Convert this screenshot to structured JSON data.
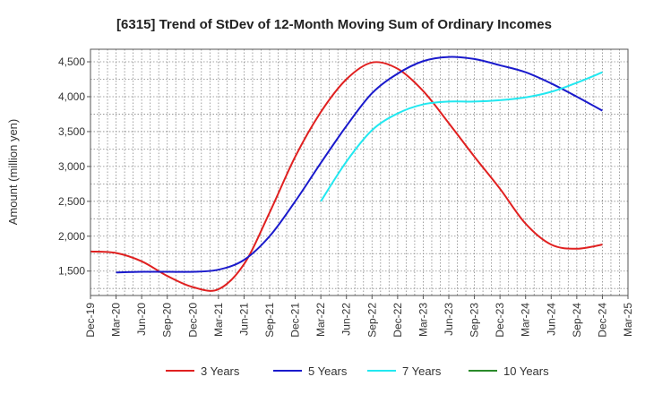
{
  "chart_data": {
    "type": "line",
    "title": "[6315]  Trend of StDev of 12-Month Moving Sum of Ordinary Incomes",
    "xlabel": "",
    "ylabel": "Amount (million yen)",
    "ylim": [
      1150,
      4680
    ],
    "yticks": [
      1500,
      2000,
      2500,
      3000,
      3500,
      4000,
      4500
    ],
    "ytick_labels": [
      "1,500",
      "2,000",
      "2,500",
      "3,000",
      "3,500",
      "4,000",
      "4,500"
    ],
    "categories": [
      "Dec-19",
      "Mar-20",
      "Jun-20",
      "Sep-20",
      "Dec-20",
      "Mar-21",
      "Jun-21",
      "Sep-21",
      "Dec-21",
      "Mar-22",
      "Jun-22",
      "Sep-22",
      "Dec-22",
      "Mar-23",
      "Jun-23",
      "Sep-23",
      "Dec-23",
      "Mar-24",
      "Jun-24",
      "Sep-24",
      "Dec-24",
      "Mar-25"
    ],
    "grid": true,
    "legend_position": "bottom",
    "series": [
      {
        "name": "3 Years",
        "color": "#e02020",
        "values": [
          1780,
          1760,
          1640,
          1430,
          1270,
          1240,
          1600,
          2340,
          3140,
          3780,
          4250,
          4490,
          4400,
          4080,
          3620,
          3140,
          2680,
          2180,
          1880,
          1820,
          1880,
          null
        ]
      },
      {
        "name": "5 Years",
        "color": "#1a1acc",
        "values": [
          null,
          1480,
          1490,
          1490,
          1490,
          1520,
          1660,
          2000,
          2500,
          3050,
          3580,
          4050,
          4330,
          4510,
          4570,
          4540,
          4450,
          4350,
          4190,
          4000,
          3800,
          null
        ]
      },
      {
        "name": "7 Years",
        "color": "#22e8f0",
        "values": [
          null,
          null,
          null,
          null,
          null,
          null,
          null,
          null,
          null,
          2500,
          3070,
          3520,
          3760,
          3890,
          3930,
          3930,
          3950,
          3990,
          4070,
          4200,
          4350,
          null
        ]
      },
      {
        "name": "10 Years",
        "color": "#2a8a2a",
        "values": [
          null,
          null,
          null,
          null,
          null,
          null,
          null,
          null,
          null,
          null,
          null,
          null,
          null,
          null,
          null,
          null,
          null,
          null,
          null,
          null,
          null,
          null
        ]
      }
    ]
  }
}
